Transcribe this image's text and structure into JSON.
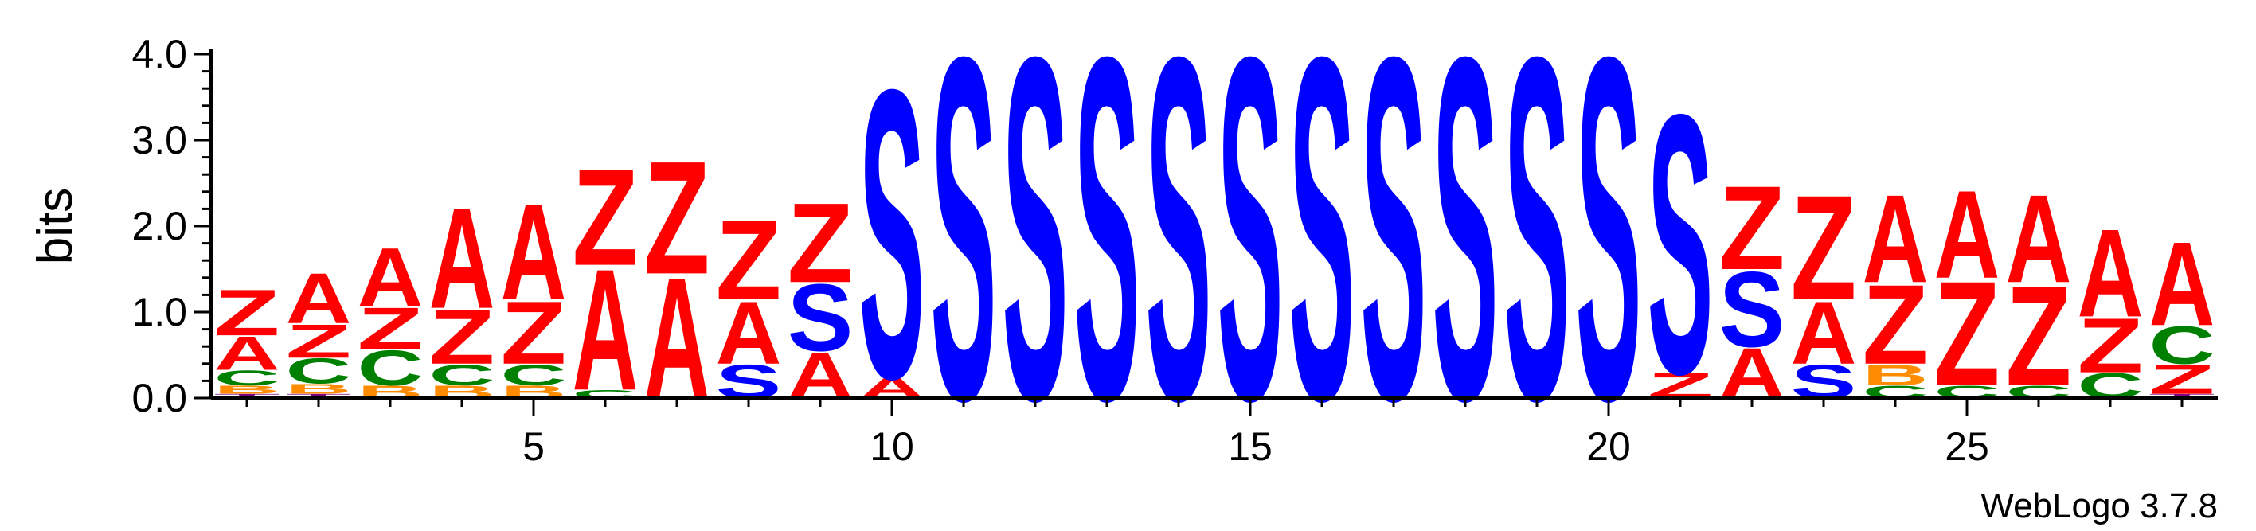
{
  "chart_data": {
    "type": "sequence-logo",
    "ylabel": "bits",
    "ylim": [
      0,
      4.0
    ],
    "y_ticks": [
      "0.0",
      "1.0",
      "2.0",
      "3.0",
      "4.0"
    ],
    "x_ticks": [
      5,
      10,
      15,
      20,
      25
    ],
    "x_range": [
      1,
      28
    ],
    "credit": "WebLogo 3.7.8",
    "colors": {
      "Z": "#ff0000",
      "A": "#ff0000",
      "S": "#0000ff",
      "C": "#008000",
      "B": "#ff8c00",
      "T": "#800080"
    },
    "positions": [
      {
        "pos": 1,
        "stack": [
          [
            "T",
            0.05
          ],
          [
            "B",
            0.1
          ],
          [
            "C",
            0.18
          ],
          [
            "A",
            0.4
          ],
          [
            "Z",
            0.55
          ]
        ]
      },
      {
        "pos": 2,
        "stack": [
          [
            "T",
            0.05
          ],
          [
            "B",
            0.12
          ],
          [
            "C",
            0.3
          ],
          [
            "Z",
            0.4
          ],
          [
            "A",
            0.6
          ]
        ]
      },
      {
        "pos": 3,
        "stack": [
          [
            "B",
            0.15
          ],
          [
            "C",
            0.42
          ],
          [
            "Z",
            0.5
          ],
          [
            "A",
            0.7
          ]
        ]
      },
      {
        "pos": 4,
        "stack": [
          [
            "B",
            0.15
          ],
          [
            "C",
            0.25
          ],
          [
            "Z",
            0.65
          ],
          [
            "A",
            1.2
          ]
        ]
      },
      {
        "pos": 5,
        "stack": [
          [
            "B",
            0.15
          ],
          [
            "C",
            0.25
          ],
          [
            "Z",
            0.75
          ],
          [
            "A",
            1.15
          ]
        ]
      },
      {
        "pos": 6,
        "stack": [
          [
            "C",
            0.1
          ],
          [
            "A",
            1.45
          ],
          [
            "Z",
            1.15
          ]
        ]
      },
      {
        "pos": 7,
        "stack": [
          [
            "A",
            1.45
          ],
          [
            "Z",
            1.35
          ]
        ]
      },
      {
        "pos": 8,
        "stack": [
          [
            "S",
            0.4
          ],
          [
            "A",
            0.75
          ],
          [
            "Z",
            0.95
          ]
        ]
      },
      {
        "pos": 9,
        "stack": [
          [
            "A",
            0.55
          ],
          [
            "S",
            0.8
          ],
          [
            "Z",
            0.95
          ]
        ]
      },
      {
        "pos": 10,
        "stack": [
          [
            "A",
            0.25
          ],
          [
            "S",
            3.45
          ]
        ]
      },
      {
        "pos": 11,
        "stack": [
          [
            "S",
            4.1
          ]
        ]
      },
      {
        "pos": 12,
        "stack": [
          [
            "S",
            4.1
          ]
        ]
      },
      {
        "pos": 13,
        "stack": [
          [
            "S",
            4.1
          ]
        ]
      },
      {
        "pos": 14,
        "stack": [
          [
            "S",
            4.1
          ]
        ]
      },
      {
        "pos": 15,
        "stack": [
          [
            "S",
            4.1
          ]
        ]
      },
      {
        "pos": 16,
        "stack": [
          [
            "S",
            4.1
          ]
        ]
      },
      {
        "pos": 17,
        "stack": [
          [
            "S",
            4.1
          ]
        ]
      },
      {
        "pos": 18,
        "stack": [
          [
            "S",
            4.1
          ]
        ]
      },
      {
        "pos": 19,
        "stack": [
          [
            "S",
            4.1
          ]
        ]
      },
      {
        "pos": 20,
        "stack": [
          [
            "S",
            4.1
          ]
        ]
      },
      {
        "pos": 21,
        "stack": [
          [
            "Z",
            0.3
          ],
          [
            "S",
            3.1
          ]
        ]
      },
      {
        "pos": 22,
        "stack": [
          [
            "A",
            0.6
          ],
          [
            "S",
            0.9
          ],
          [
            "Z",
            1.0
          ]
        ]
      },
      {
        "pos": 23,
        "stack": [
          [
            "S",
            0.4
          ],
          [
            "A",
            0.75
          ],
          [
            "Z",
            1.25
          ]
        ]
      },
      {
        "pos": 24,
        "stack": [
          [
            "C",
            0.15
          ],
          [
            "B",
            0.25
          ],
          [
            "Z",
            0.95
          ],
          [
            "A",
            1.05
          ]
        ]
      },
      {
        "pos": 25,
        "stack": [
          [
            "C",
            0.15
          ],
          [
            "Z",
            1.25
          ],
          [
            "A",
            1.05
          ]
        ]
      },
      {
        "pos": 26,
        "stack": [
          [
            "C",
            0.15
          ],
          [
            "Z",
            1.2
          ],
          [
            "A",
            1.05
          ]
        ]
      },
      {
        "pos": 27,
        "stack": [
          [
            "C",
            0.3
          ],
          [
            "Z",
            0.65
          ],
          [
            "A",
            1.05
          ]
        ]
      },
      {
        "pos": 28,
        "stack": [
          [
            "T",
            0.05
          ],
          [
            "Z",
            0.35
          ],
          [
            "C",
            0.45
          ],
          [
            "A",
            1.0
          ]
        ]
      }
    ]
  }
}
